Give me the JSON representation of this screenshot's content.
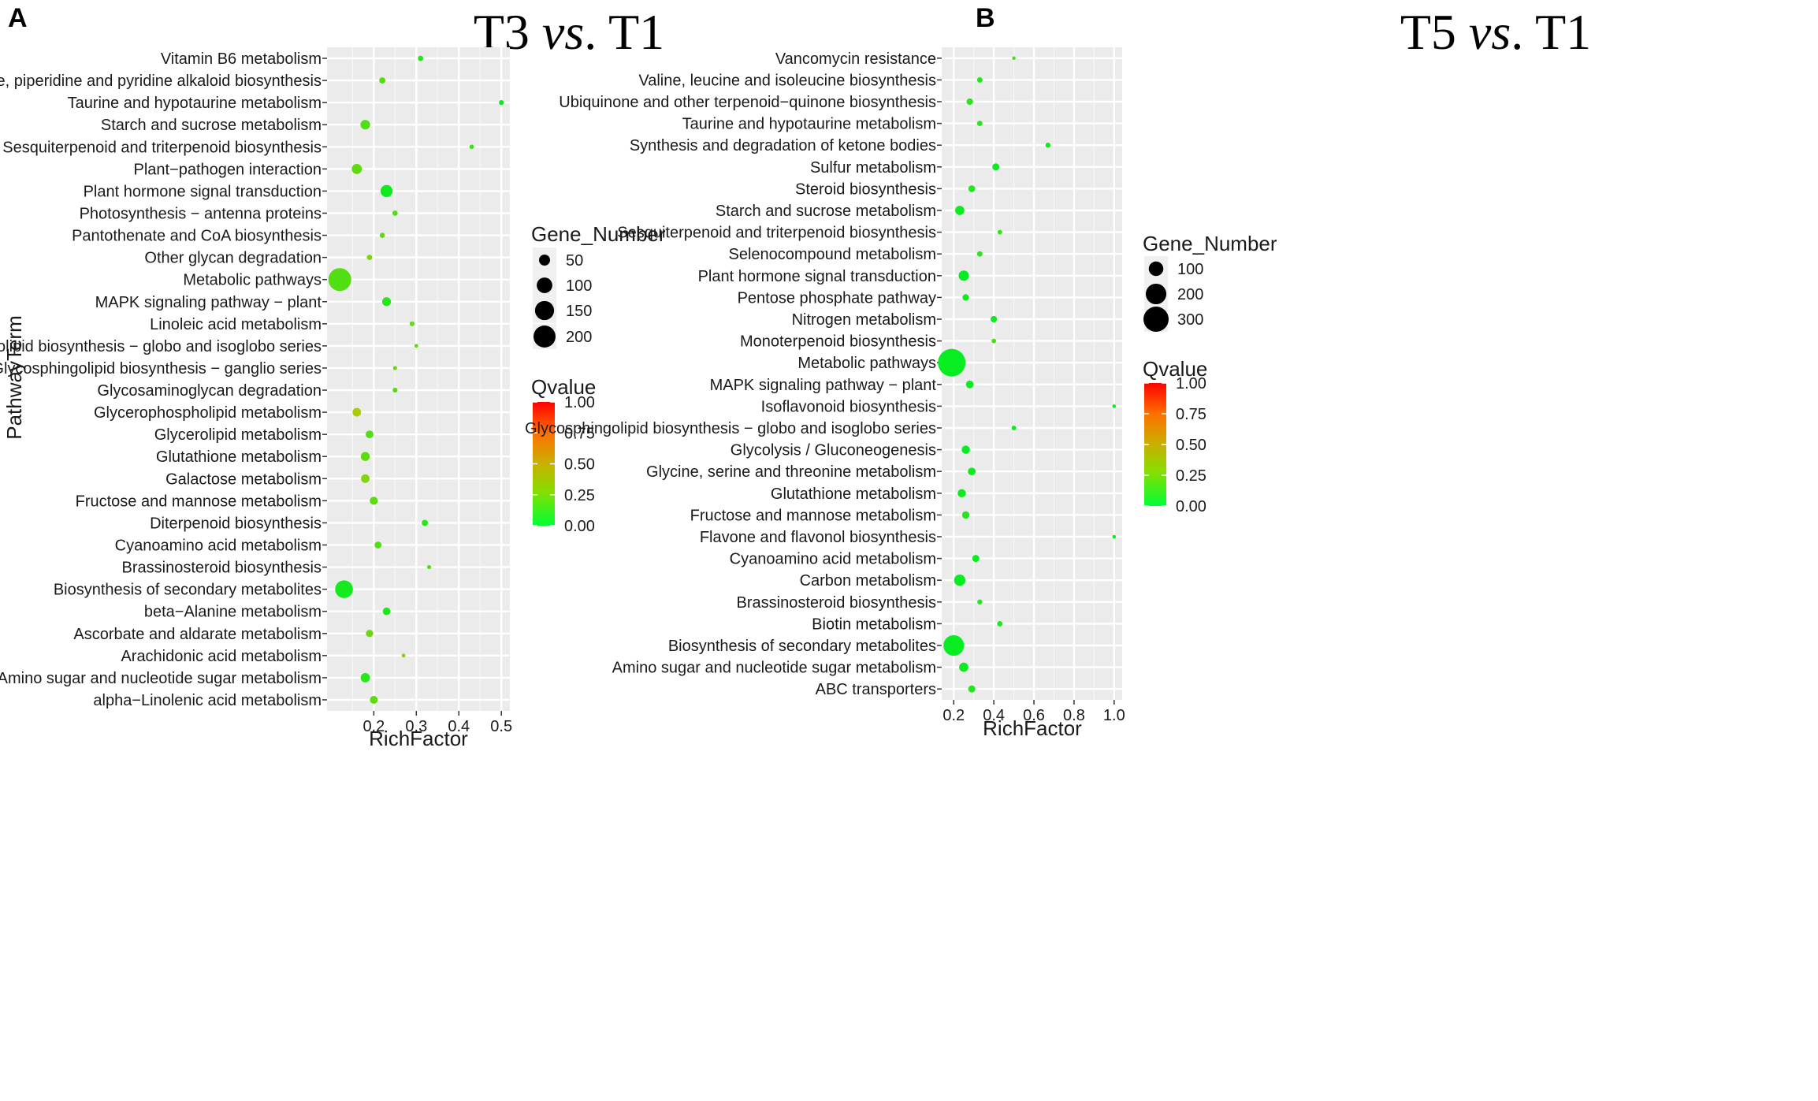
{
  "figure_labels": {
    "a": "A",
    "b": "B"
  },
  "titles": {
    "a": {
      "pre": "T3 ",
      "vs": "vs",
      "post": ". T1"
    },
    "b": {
      "pre": "T5 ",
      "vs": "vs",
      "post": ". T1"
    }
  },
  "colors": {
    "low": "#00ee22",
    "mid": "#a8cc00",
    "high": "#ff0000"
  },
  "chart_data": [
    {
      "type": "scatter",
      "title": "T3 vs. T1",
      "xlabel": "RichFactor",
      "ylabel": "PathwayTerm",
      "xlim": [
        0.09,
        0.52
      ],
      "xticks": [
        0.2,
        0.3,
        0.4,
        0.5
      ],
      "xtick_labels": [
        "0.2",
        "0.3",
        "0.4",
        "0.5"
      ],
      "size_legend": {
        "title": "Gene_Number",
        "levels": [
          50,
          100,
          150,
          200
        ],
        "labels": [
          "50",
          "100",
          "150",
          "200"
        ],
        "max": 230
      },
      "color_legend": {
        "title": "Qvalue",
        "ticks": [
          "1.00",
          "0.75",
          "0.50",
          "0.25",
          "0.00"
        ]
      },
      "points": [
        {
          "term": "Vitamin B6 metabolism",
          "rich": 0.31,
          "genes": 12,
          "q": 0.05
        },
        {
          "term": "Tropane, piperidine and pyridine alkaloid biosynthesis",
          "rich": 0.22,
          "genes": 16,
          "q": 0.12
        },
        {
          "term": "Taurine and hypotaurine metabolism",
          "rich": 0.5,
          "genes": 10,
          "q": 0.02
        },
        {
          "term": "Starch and sucrose metabolism",
          "rich": 0.18,
          "genes": 38,
          "q": 0.12
        },
        {
          "term": "Sesquiterpenoid and triterpenoid biosynthesis",
          "rich": 0.43,
          "genes": 8,
          "q": 0.08
        },
        {
          "term": "Plant−pathogen interaction",
          "rich": 0.16,
          "genes": 42,
          "q": 0.14
        },
        {
          "term": "Plant hormone signal transduction",
          "rich": 0.23,
          "genes": 60,
          "q": 0.02
        },
        {
          "term": "Photosynthesis − antenna proteins",
          "rich": 0.25,
          "genes": 12,
          "q": 0.12
        },
        {
          "term": "Pantothenate and CoA biosynthesis",
          "rich": 0.22,
          "genes": 11,
          "q": 0.14
        },
        {
          "term": "Other glycan degradation",
          "rich": 0.19,
          "genes": 12,
          "q": 0.18
        },
        {
          "term": "Metabolic pathways",
          "rich": 0.12,
          "genes": 215,
          "q": 0.12
        },
        {
          "term": "MAPK signaling pathway − plant",
          "rich": 0.23,
          "genes": 32,
          "q": 0.06
        },
        {
          "term": "Linoleic acid metabolism",
          "rich": 0.29,
          "genes": 10,
          "q": 0.15
        },
        {
          "term": "Glycosphingolipid biosynthesis − globo and isoglobo series",
          "rich": 0.3,
          "genes": 6,
          "q": 0.15
        },
        {
          "term": "Glycosphingolipid biosynthesis − ganglio series",
          "rich": 0.25,
          "genes": 7,
          "q": 0.15
        },
        {
          "term": "Glycosaminoglycan degradation",
          "rich": 0.25,
          "genes": 10,
          "q": 0.12
        },
        {
          "term": "Glycerophospholipid metabolism",
          "rich": 0.16,
          "genes": 30,
          "q": 0.25
        },
        {
          "term": "Glycerolipid metabolism",
          "rich": 0.19,
          "genes": 25,
          "q": 0.12
        },
        {
          "term": "Glutathione metabolism",
          "rich": 0.18,
          "genes": 33,
          "q": 0.14
        },
        {
          "term": "Galactose metabolism",
          "rich": 0.18,
          "genes": 30,
          "q": 0.2
        },
        {
          "term": "Fructose and mannose metabolism",
          "rich": 0.2,
          "genes": 27,
          "q": 0.14
        },
        {
          "term": "Diterpenoid biosynthesis",
          "rich": 0.32,
          "genes": 16,
          "q": 0.06
        },
        {
          "term": "Cyanoamino acid metabolism",
          "rich": 0.21,
          "genes": 20,
          "q": 0.12
        },
        {
          "term": "Brassinosteroid biosynthesis",
          "rich": 0.33,
          "genes": 7,
          "q": 0.12
        },
        {
          "term": "Biosynthesis of secondary metabolites",
          "rich": 0.13,
          "genes": 130,
          "q": 0.03
        },
        {
          "term": "beta−Alanine metabolism",
          "rich": 0.23,
          "genes": 24,
          "q": 0.04
        },
        {
          "term": "Ascorbate and aldarate metabolism",
          "rich": 0.19,
          "genes": 22,
          "q": 0.16
        },
        {
          "term": "Arachidonic acid metabolism",
          "rich": 0.27,
          "genes": 6,
          "q": 0.2
        },
        {
          "term": "Amino sugar and nucleotide sugar metabolism",
          "rich": 0.18,
          "genes": 36,
          "q": 0.06
        },
        {
          "term": "alpha−Linolenic acid metabolism",
          "rich": 0.2,
          "genes": 25,
          "q": 0.14
        }
      ]
    },
    {
      "type": "scatter",
      "title": "T5 vs. T1",
      "xlabel": "RichFactor",
      "ylabel": "",
      "xlim": [
        0.14,
        1.04
      ],
      "xticks": [
        0.2,
        0.4,
        0.6,
        0.8,
        1.0
      ],
      "xtick_labels": [
        "0.2",
        "0.4",
        "0.6",
        "0.8",
        "1.0"
      ],
      "size_legend": {
        "title": "Gene_Number",
        "levels": [
          100,
          200,
          300
        ],
        "labels": [
          "100",
          "200",
          "300"
        ],
        "max": 380
      },
      "color_legend": {
        "title": "Qvalue",
        "ticks": [
          "1.00",
          "0.75",
          "0.50",
          "0.25",
          "0.00"
        ]
      },
      "points": [
        {
          "term": "Vancomycin resistance",
          "rich": 0.5,
          "genes": 6,
          "q": 0.1
        },
        {
          "term": "Valine, leucine and isoleucine biosynthesis",
          "rich": 0.33,
          "genes": 14,
          "q": 0.05
        },
        {
          "term": "Ubiquinone and other terpenoid−quinone biosynthesis",
          "rich": 0.28,
          "genes": 20,
          "q": 0.06
        },
        {
          "term": "Taurine and hypotaurine metabolism",
          "rich": 0.33,
          "genes": 14,
          "q": 0.06
        },
        {
          "term": "Synthesis and degradation of ketone bodies",
          "rich": 0.67,
          "genes": 12,
          "q": 0.02
        },
        {
          "term": "Sulfur metabolism",
          "rich": 0.41,
          "genes": 24,
          "q": 0.02
        },
        {
          "term": "Steroid biosynthesis",
          "rich": 0.29,
          "genes": 22,
          "q": 0.05
        },
        {
          "term": "Starch and sucrose metabolism",
          "rich": 0.23,
          "genes": 40,
          "q": 0.02
        },
        {
          "term": "Sesquiterpenoid and triterpenoid biosynthesis",
          "rich": 0.43,
          "genes": 10,
          "q": 0.08
        },
        {
          "term": "Selenocompound metabolism",
          "rich": 0.33,
          "genes": 14,
          "q": 0.06
        },
        {
          "term": "Plant hormone signal transduction",
          "rich": 0.25,
          "genes": 50,
          "q": 0.01
        },
        {
          "term": "Pentose phosphate pathway",
          "rich": 0.26,
          "genes": 20,
          "q": 0.02
        },
        {
          "term": "Nitrogen metabolism",
          "rich": 0.4,
          "genes": 20,
          "q": 0.02
        },
        {
          "term": "Monoterpenoid biosynthesis",
          "rich": 0.4,
          "genes": 10,
          "q": 0.1
        },
        {
          "term": "Metabolic pathways",
          "rich": 0.19,
          "genes": 360,
          "q": 0.01
        },
        {
          "term": "MAPK signaling pathway − plant",
          "rich": 0.28,
          "genes": 28,
          "q": 0.02
        },
        {
          "term": "Isoflavonoid biosynthesis",
          "rich": 1.0,
          "genes": 6,
          "q": 0.02
        },
        {
          "term": "Glycosphingolipid biosynthesis − globo and isoglobo series",
          "rich": 0.5,
          "genes": 10,
          "q": 0.02
        },
        {
          "term": "Glycolysis / Gluconeogenesis",
          "rich": 0.26,
          "genes": 32,
          "q": 0.01
        },
        {
          "term": "Glycine, serine and threonine metabolism",
          "rich": 0.29,
          "genes": 28,
          "q": 0.02
        },
        {
          "term": "Glutathione metabolism",
          "rich": 0.24,
          "genes": 32,
          "q": 0.02
        },
        {
          "term": "Fructose and mannose metabolism",
          "rich": 0.26,
          "genes": 26,
          "q": 0.05
        },
        {
          "term": "Flavone and flavonol biosynthesis",
          "rich": 1.0,
          "genes": 6,
          "q": 0.02
        },
        {
          "term": "Cyanoamino acid metabolism",
          "rich": 0.31,
          "genes": 24,
          "q": 0.02
        },
        {
          "term": "Carbon metabolism",
          "rich": 0.23,
          "genes": 60,
          "q": 0.01
        },
        {
          "term": "Brassinosteroid biosynthesis",
          "rich": 0.33,
          "genes": 12,
          "q": 0.06
        },
        {
          "term": "Biotin metabolism",
          "rich": 0.43,
          "genes": 14,
          "q": 0.04
        },
        {
          "term": "Biosynthesis of secondary metabolites",
          "rich": 0.2,
          "genes": 200,
          "q": 0.01
        },
        {
          "term": "Amino sugar and nucleotide sugar metabolism",
          "rich": 0.25,
          "genes": 40,
          "q": 0.02
        },
        {
          "term": "ABC transporters",
          "rich": 0.29,
          "genes": 24,
          "q": 0.05
        }
      ]
    }
  ]
}
